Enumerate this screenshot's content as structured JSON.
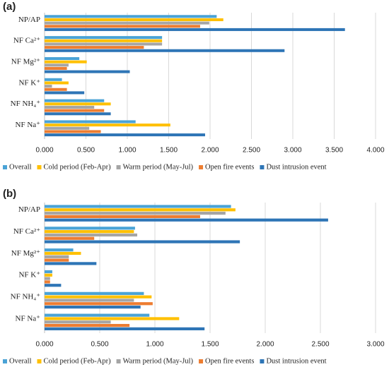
{
  "chart_data": [
    {
      "type": "bar",
      "orientation": "horizontal",
      "title": "(a)",
      "categories": [
        "NP/AP",
        "NF Ca²⁺",
        "NF Mg²⁺",
        "NF K⁺",
        "NF NH₄⁺",
        "NF Na⁺"
      ],
      "series": [
        {
          "name": "Overall",
          "color": "#4aa3d6",
          "values": [
            2.08,
            1.42,
            0.42,
            0.21,
            0.72,
            1.1
          ]
        },
        {
          "name": "Cold period (Feb-Apr)",
          "color": "#ffc000",
          "values": [
            2.16,
            1.42,
            0.51,
            0.29,
            0.8,
            1.52
          ]
        },
        {
          "name": "Warm period (May-Jul)",
          "color": "#a5a5a5",
          "values": [
            1.99,
            1.42,
            0.29,
            0.09,
            0.6,
            0.54
          ]
        },
        {
          "name": "Open fire events",
          "color": "#ed7d31",
          "values": [
            1.88,
            1.2,
            0.27,
            0.27,
            0.72,
            0.68
          ]
        },
        {
          "name": "Dust intrusion event",
          "color": "#2e75b6",
          "values": [
            3.63,
            2.9,
            1.03,
            0.48,
            0.8,
            1.94
          ]
        }
      ],
      "xlim": [
        0,
        4
      ],
      "xticks": [
        {
          "value": 0,
          "label": "0.000"
        },
        {
          "value": 0.5,
          "label": "0.500"
        },
        {
          "value": 1,
          "label": "1.000"
        },
        {
          "value": 1.5,
          "label": "1.500"
        },
        {
          "value": 2,
          "label": "2.000"
        },
        {
          "value": 2.5,
          "label": "2.500"
        },
        {
          "value": 3,
          "label": "3.000"
        },
        {
          "value": 3.5,
          "label": "3.500"
        },
        {
          "value": 4,
          "label": "4.000"
        }
      ],
      "grid": true,
      "legend": "bottom"
    },
    {
      "type": "bar",
      "orientation": "horizontal",
      "title": "(b)",
      "categories": [
        "NP/AP",
        "NF Ca²⁺",
        "NF Mg²⁺",
        "NF K⁺",
        "NF NH₄⁺",
        "NF Na⁺"
      ],
      "series": [
        {
          "name": "Overall",
          "color": "#4aa3d6",
          "values": [
            1.69,
            0.82,
            0.26,
            0.07,
            0.9,
            0.95
          ]
        },
        {
          "name": "Cold period (Feb-Apr)",
          "color": "#ffc000",
          "values": [
            1.73,
            0.81,
            0.33,
            0.07,
            0.97,
            1.22
          ]
        },
        {
          "name": "Warm period (May-Jul)",
          "color": "#a5a5a5",
          "values": [
            1.64,
            0.84,
            0.22,
            0.05,
            0.81,
            0.6
          ]
        },
        {
          "name": "Open fire events",
          "color": "#ed7d31",
          "values": [
            1.41,
            0.45,
            0.22,
            0.05,
            0.98,
            0.77
          ]
        },
        {
          "name": "Dust intrusion event",
          "color": "#2e75b6",
          "values": [
            2.57,
            1.77,
            0.47,
            0.15,
            0.87,
            1.45
          ]
        }
      ],
      "xlim": [
        0,
        3
      ],
      "xticks": [
        {
          "value": 0,
          "label": "0.000"
        },
        {
          "value": 0.5,
          "label": "0.500"
        },
        {
          "value": 1,
          "label": "1.000"
        },
        {
          "value": 1.5,
          "label": "1.500"
        },
        {
          "value": 2,
          "label": "2.000"
        },
        {
          "value": 2.5,
          "label": "2.500"
        },
        {
          "value": 3,
          "label": "3.000"
        }
      ],
      "grid": true,
      "legend": "bottom"
    }
  ]
}
